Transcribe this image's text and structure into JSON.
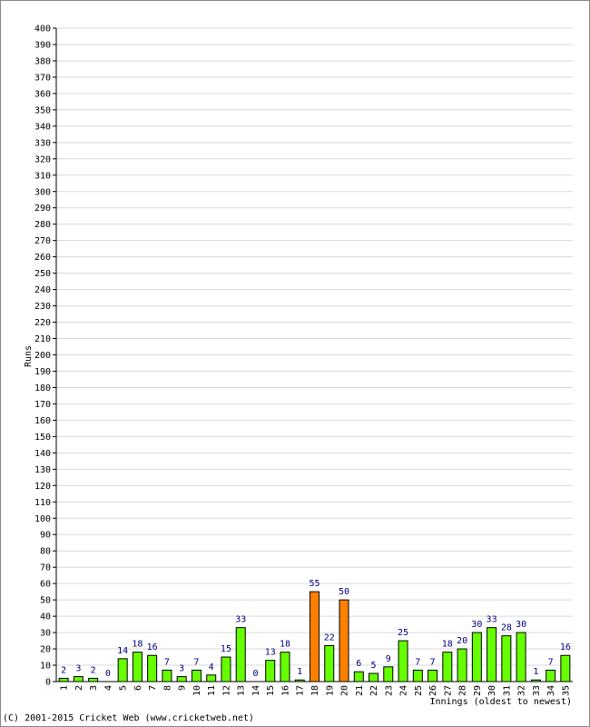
{
  "chart_data": {
    "type": "bar",
    "title": "",
    "xlabel": "Innings (oldest to newest)",
    "ylabel": "Runs",
    "ylim": [
      0,
      400
    ],
    "ytick_step": 10,
    "grid": true,
    "categories": [
      "1",
      "2",
      "3",
      "4",
      "5",
      "6",
      "7",
      "8",
      "9",
      "10",
      "11",
      "12",
      "13",
      "14",
      "15",
      "16",
      "17",
      "18",
      "19",
      "20",
      "21",
      "22",
      "23",
      "24",
      "25",
      "26",
      "27",
      "28",
      "29",
      "30",
      "31",
      "32",
      "33",
      "34",
      "35"
    ],
    "values": [
      2,
      3,
      2,
      0,
      14,
      18,
      16,
      7,
      3,
      7,
      4,
      15,
      33,
      0,
      13,
      18,
      1,
      55,
      22,
      50,
      6,
      5,
      9,
      25,
      7,
      7,
      18,
      20,
      30,
      33,
      28,
      30,
      1,
      7,
      16
    ],
    "highlight_threshold": 50,
    "colors": {
      "normal": "#66ff00",
      "highlight": "#ff8000",
      "label": "#000080",
      "grid": "#d9d9d9"
    }
  },
  "footer": {
    "copyright": "(C) 2001-2015 Cricket Web (www.cricketweb.net)"
  }
}
